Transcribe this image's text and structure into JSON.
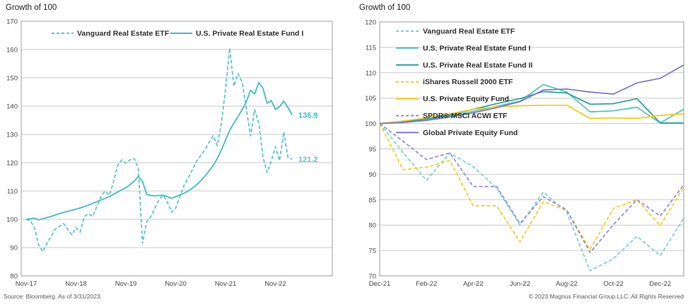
{
  "footer": {
    "source": "Source: Bloomberg. As of 3/31/2023.",
    "copyright": "© 2023 Magnus Financial Group LLC. All Rights Reserved"
  },
  "colors": {
    "grid": "#cacaca",
    "axis_box": "#9e9e9e",
    "tick_text": "#4a4a4a",
    "legend_text": "#2e2e2e"
  },
  "chart_data": [
    {
      "type": "line",
      "title": "Growth of 100",
      "x_unit": "month",
      "ylim": [
        80,
        170
      ],
      "ytick_step": 10,
      "grid": "horizontal",
      "legend_position": "top-inside-horizontal",
      "x_ticks": [
        {
          "i": 0,
          "label": "Nov-17"
        },
        {
          "i": 12,
          "label": "Nov-18"
        },
        {
          "i": 24,
          "label": "Nov-19"
        },
        {
          "i": 36,
          "label": "Nov-20"
        },
        {
          "i": 48,
          "label": "Nov-21"
        },
        {
          "i": 60,
          "label": "Nov-22"
        }
      ],
      "series": [
        {
          "name": "Vanguard Real Estate ETF",
          "style": "dashed",
          "color": "#5cc7ca",
          "end_label": "121.2",
          "values": [
            100,
            99.5,
            97,
            91,
            88.5,
            91.5,
            94,
            96.5,
            97.5,
            98.5,
            96.5,
            94.5,
            97,
            95.5,
            101,
            102,
            101,
            104.5,
            108,
            110,
            108.5,
            113,
            119,
            121,
            119.8,
            121,
            121.5,
            118,
            91.5,
            99,
            101,
            104,
            107,
            108.5,
            106,
            102.5,
            104,
            108,
            112,
            114.5,
            117.5,
            120.5,
            122.5,
            124.5,
            127,
            129.5,
            126,
            134,
            146,
            160.5,
            147,
            151.5,
            148.5,
            139,
            129.5,
            138.8,
            134,
            122,
            116.5,
            120.5,
            125.6,
            120.7,
            130.9,
            122,
            121.2
          ]
        },
        {
          "name": "U.S. Private Real Estate Fund I",
          "style": "solid",
          "color": "#42bec2",
          "end_label": "136.9",
          "values": [
            100,
            100.2,
            100.4,
            99.8,
            100.2,
            100.6,
            101,
            101.5,
            102,
            102.4,
            102.8,
            103.2,
            103.6,
            104,
            104.5,
            105,
            105.6,
            106.2,
            106.8,
            107.4,
            108,
            108.8,
            109.6,
            110.4,
            111.2,
            112.2,
            113.5,
            115,
            113.5,
            108.8,
            108.4,
            108.3,
            108.4,
            108.5,
            108,
            107.4,
            108,
            108.6,
            109.2,
            110,
            111,
            112.2,
            113.6,
            115.2,
            117,
            119,
            121.5,
            124.5,
            128,
            131.5,
            134,
            136.3,
            138.8,
            141.5,
            145.6,
            144.3,
            148.3,
            146.3,
            141,
            142,
            138.8,
            139.8,
            141.8,
            139.5,
            136.9
          ]
        }
      ]
    },
    {
      "type": "line",
      "title": "Growth of 100",
      "x_unit": "month",
      "ylim": [
        70,
        120
      ],
      "ytick_step": 5,
      "grid": "horizontal",
      "legend_position": "top-left-inside-vertical",
      "x_ticks": [
        {
          "i": 0,
          "label": "Dec-21"
        },
        {
          "i": 2,
          "label": "Feb-22"
        },
        {
          "i": 4,
          "label": "Apr-22"
        },
        {
          "i": 6,
          "label": "Jun-22"
        },
        {
          "i": 8,
          "label": "Aug-22"
        },
        {
          "i": 10,
          "label": "Oct-22"
        },
        {
          "i": 12,
          "label": "Dec-22"
        }
      ],
      "series": [
        {
          "name": "Vanguard Real Estate ETF",
          "style": "dashed",
          "color": "#7dd0d0",
          "values": [
            100,
            94.3,
            88.8,
            94.2,
            91.5,
            87.3,
            80,
            86.5,
            82.5,
            71,
            73.4,
            77.8,
            74,
            81.3
          ]
        },
        {
          "name": "U.S. Private Real Estate Fund I",
          "style": "solid",
          "color": "#52c3bc",
          "values": [
            100,
            100.3,
            100.8,
            101.5,
            102.4,
            103.4,
            104.4,
            107.7,
            106.2,
            102.3,
            102.5,
            103.2,
            100.1,
            102.8
          ]
        },
        {
          "name": "U.S. Private Real Estate Fund II",
          "style": "solid",
          "color": "#2aa29a",
          "values": [
            100,
            100.3,
            100.9,
            101.7,
            102.8,
            103.9,
            104.9,
            106.3,
            106,
            103.8,
            103.9,
            104.9,
            100.1,
            100.1
          ]
        },
        {
          "name": "iShares Russell 2000 ETF",
          "style": "dashed",
          "color": "#eed21f",
          "values": [
            100,
            90.9,
            91.4,
            92.7,
            83.8,
            83.8,
            76.7,
            84.6,
            82.9,
            75.2,
            83.3,
            85,
            79.9,
            87.5
          ]
        },
        {
          "name": "U.S. Private Equity Fund",
          "style": "solid",
          "color": "#fdc70f",
          "values": [
            100,
            100.5,
            101.1,
            101.9,
            102.8,
            103.3,
            103.5,
            103.6,
            103.6,
            101,
            101.1,
            101,
            101.6,
            101.9
          ]
        },
        {
          "name": "SPDR® MSCI ACWI ETF",
          "style": "dashed",
          "color": "#8f8ae8",
          "values": [
            100,
            96.5,
            92.9,
            94.2,
            87.6,
            87.6,
            80.3,
            85.6,
            83,
            74.6,
            80.1,
            85,
            81.8,
            87.9
          ]
        },
        {
          "name": "Global Private Equity Fund",
          "style": "solid",
          "color": "#7b75d8",
          "values": [
            100,
            100.2,
            100.6,
            101.3,
            102.1,
            103.1,
            104.3,
            106.6,
            106.8,
            106.2,
            105.8,
            108,
            108.9,
            111.5
          ]
        }
      ]
    }
  ]
}
